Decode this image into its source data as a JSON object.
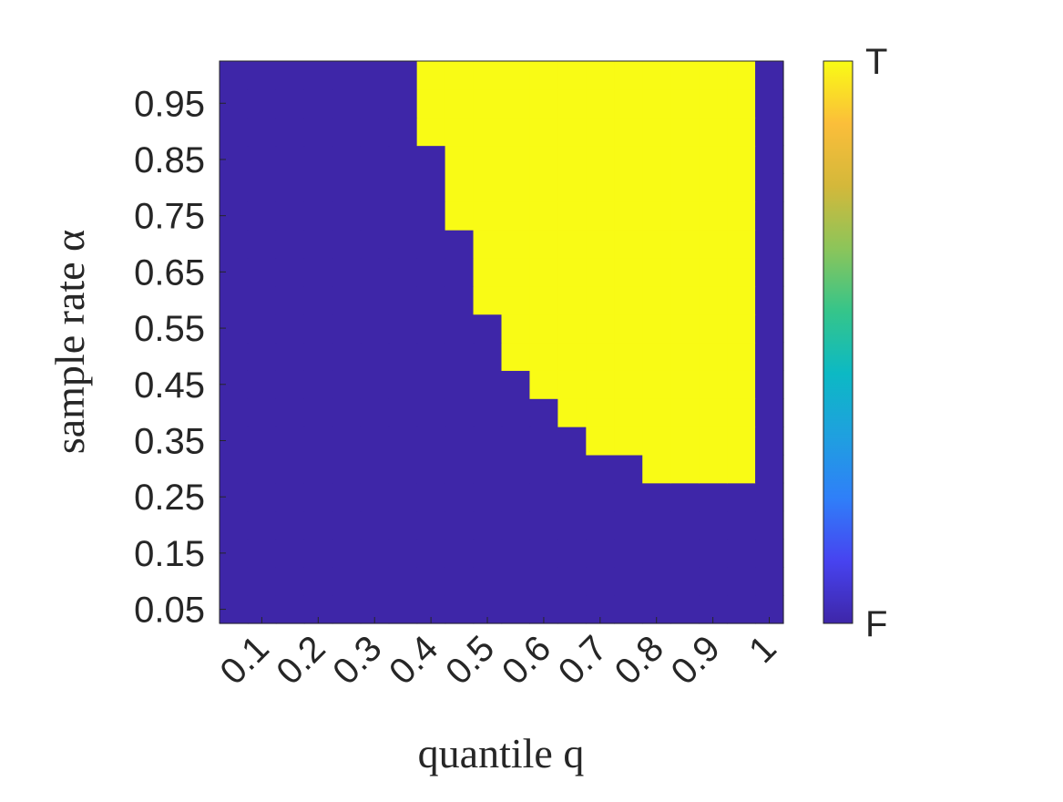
{
  "chart_data": {
    "type": "heatmap",
    "x_label": "quantile q",
    "y_label": "sample rate α",
    "x": [
      0.05,
      0.1,
      0.15,
      0.2,
      0.25,
      0.3,
      0.35,
      0.4,
      0.45,
      0.5,
      0.55,
      0.6,
      0.65,
      0.7,
      0.75,
      0.8,
      0.85,
      0.9,
      0.95,
      1.0
    ],
    "y": [
      0.05,
      0.1,
      0.15,
      0.2,
      0.25,
      0.3,
      0.35,
      0.4,
      0.45,
      0.5,
      0.55,
      0.6,
      0.65,
      0.7,
      0.75,
      0.8,
      0.85,
      0.9,
      0.95,
      1.0
    ],
    "z": [
      [
        0,
        0,
        0,
        0,
        0,
        0,
        0,
        0,
        0,
        0,
        0,
        0,
        0,
        0,
        0,
        0,
        0,
        0,
        0,
        0
      ],
      [
        0,
        0,
        0,
        0,
        0,
        0,
        0,
        0,
        0,
        0,
        0,
        0,
        0,
        0,
        0,
        0,
        0,
        0,
        0,
        0
      ],
      [
        0,
        0,
        0,
        0,
        0,
        0,
        0,
        0,
        0,
        0,
        0,
        0,
        0,
        0,
        0,
        0,
        0,
        0,
        0,
        0
      ],
      [
        0,
        0,
        0,
        0,
        0,
        0,
        0,
        0,
        0,
        0,
        0,
        0,
        0,
        0,
        0,
        0,
        0,
        0,
        0,
        0
      ],
      [
        0,
        0,
        0,
        0,
        0,
        0,
        0,
        0,
        0,
        0,
        0,
        0,
        0,
        0,
        0,
        0,
        0,
        0,
        0,
        0
      ],
      [
        0,
        0,
        0,
        0,
        0,
        0,
        0,
        0,
        0,
        0,
        0,
        0,
        0,
        0,
        0,
        1,
        1,
        1,
        1,
        0
      ],
      [
        0,
        0,
        0,
        0,
        0,
        0,
        0,
        0,
        0,
        0,
        0,
        0,
        0,
        1,
        1,
        1,
        1,
        1,
        1,
        0
      ],
      [
        0,
        0,
        0,
        0,
        0,
        0,
        0,
        0,
        0,
        0,
        0,
        0,
        1,
        1,
        1,
        1,
        1,
        1,
        1,
        0
      ],
      [
        0,
        0,
        0,
        0,
        0,
        0,
        0,
        0,
        0,
        0,
        0,
        1,
        1,
        1,
        1,
        1,
        1,
        1,
        1,
        0
      ],
      [
        0,
        0,
        0,
        0,
        0,
        0,
        0,
        0,
        0,
        0,
        1,
        1,
        1,
        1,
        1,
        1,
        1,
        1,
        1,
        0
      ],
      [
        0,
        0,
        0,
        0,
        0,
        0,
        0,
        0,
        0,
        0,
        1,
        1,
        1,
        1,
        1,
        1,
        1,
        1,
        1,
        0
      ],
      [
        0,
        0,
        0,
        0,
        0,
        0,
        0,
        0,
        0,
        1,
        1,
        1,
        1,
        1,
        1,
        1,
        1,
        1,
        1,
        0
      ],
      [
        0,
        0,
        0,
        0,
        0,
        0,
        0,
        0,
        0,
        1,
        1,
        1,
        1,
        1,
        1,
        1,
        1,
        1,
        1,
        0
      ],
      [
        0,
        0,
        0,
        0,
        0,
        0,
        0,
        0,
        0,
        1,
        1,
        1,
        1,
        1,
        1,
        1,
        1,
        1,
        1,
        0
      ],
      [
        0,
        0,
        0,
        0,
        0,
        0,
        0,
        0,
        1,
        1,
        1,
        1,
        1,
        1,
        1,
        1,
        1,
        1,
        1,
        0
      ],
      [
        0,
        0,
        0,
        0,
        0,
        0,
        0,
        0,
        1,
        1,
        1,
        1,
        1,
        1,
        1,
        1,
        1,
        1,
        1,
        0
      ],
      [
        0,
        0,
        0,
        0,
        0,
        0,
        0,
        0,
        1,
        1,
        1,
        1,
        1,
        1,
        1,
        1,
        1,
        1,
        1,
        0
      ],
      [
        0,
        0,
        0,
        0,
        0,
        0,
        0,
        1,
        1,
        1,
        1,
        1,
        1,
        1,
        1,
        1,
        1,
        1,
        1,
        0
      ],
      [
        0,
        0,
        0,
        0,
        0,
        0,
        0,
        1,
        1,
        1,
        1,
        1,
        1,
        1,
        1,
        1,
        1,
        1,
        1,
        0
      ],
      [
        0,
        0,
        0,
        0,
        0,
        0,
        0,
        1,
        1,
        1,
        1,
        1,
        1,
        1,
        1,
        1,
        1,
        1,
        1,
        0
      ]
    ],
    "xlim": [
      0.025,
      1.025
    ],
    "ylim": [
      0.025,
      1.025
    ],
    "xticks": [
      0.1,
      0.2,
      0.3,
      0.4,
      0.5,
      0.6,
      0.7,
      0.8,
      0.9,
      1
    ],
    "yticks": [
      0.05,
      0.15,
      0.25,
      0.35,
      0.45,
      0.55,
      0.65,
      0.75,
      0.85,
      0.95
    ],
    "clim": [
      0,
      1
    ],
    "cticks": [
      {
        "value": 0,
        "label": "F"
      },
      {
        "value": 1,
        "label": "T"
      }
    ],
    "colormap": [
      "#3e26a8",
      "#4743f0",
      "#2f7ff9",
      "#1fa0df",
      "#0cb9c4",
      "#35c58a",
      "#8cc55a",
      "#d4b83a",
      "#fbbe3a",
      "#f9fb15"
    ]
  }
}
